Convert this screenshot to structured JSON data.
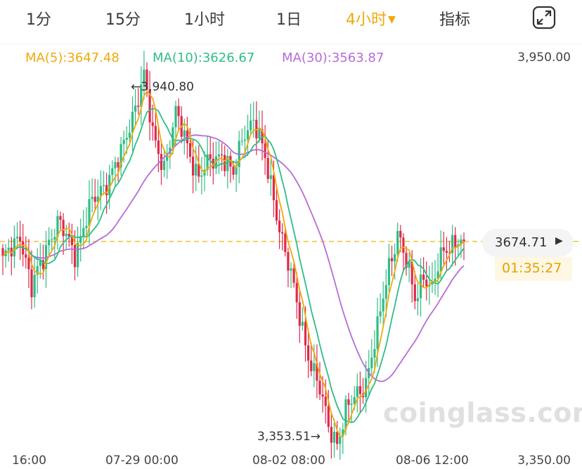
{
  "tabs": [
    {
      "label": "1分"
    },
    {
      "label": "15分"
    },
    {
      "label": "1小时"
    },
    {
      "label": "1日"
    },
    {
      "label": "4小时",
      "active": true
    },
    {
      "label": "指标"
    }
  ],
  "dropdown_caret": "▼",
  "icons": {
    "expand": "expand-corners-icon",
    "price_arrow": "triangle-right-icon"
  },
  "colors": {
    "up": "#2ebd85",
    "down": "#e0294a",
    "ma5": "#f0a90a",
    "ma10": "#2ebd85",
    "ma30": "#b86bd9",
    "last_price_line": "#f0c030",
    "accent": "#f0a90a"
  },
  "chart_data": {
    "type": "candlestick",
    "interval": "4小时",
    "price_axis": {
      "max_label": "3,950.00",
      "min_label": "3,350.00",
      "ylim": [
        3350,
        3950
      ]
    },
    "x_tick_labels": [
      "16:00",
      "07-29 00:00",
      "08-02 08:00",
      "08-06 12:00"
    ],
    "indicators": {
      "ma5": {
        "label": "MA(5):3647.48",
        "value": 3647.48
      },
      "ma10": {
        "label": "MA(10):3626.67",
        "value": 3626.67
      },
      "ma30": {
        "label": "MA(30):3563.87",
        "value": 3563.87
      }
    },
    "high_marker": {
      "label": "←3,940.80",
      "value": 3940.8
    },
    "low_marker": {
      "label": "3,353.51→",
      "value": 3353.51
    },
    "last_price": {
      "label": "3674.71",
      "value": 3674.71
    },
    "countdown": "01:35:27",
    "close_points": [
      {
        "t": 0,
        "close": 3640
      },
      {
        "t": 6,
        "close": 3690
      },
      {
        "t": 10,
        "close": 3600
      },
      {
        "t": 16,
        "close": 3680
      },
      {
        "t": 19,
        "close": 3700
      },
      {
        "t": 25,
        "close": 3660
      },
      {
        "t": 30,
        "close": 3720
      },
      {
        "t": 35,
        "close": 3760
      },
      {
        "t": 41,
        "close": 3800
      },
      {
        "t": 46,
        "close": 3880
      },
      {
        "t": 49,
        "close": 3920
      },
      {
        "t": 52,
        "close": 3830
      },
      {
        "t": 56,
        "close": 3790
      },
      {
        "t": 60,
        "close": 3860
      },
      {
        "t": 64,
        "close": 3820
      },
      {
        "t": 68,
        "close": 3770
      },
      {
        "t": 72,
        "close": 3790
      },
      {
        "t": 76,
        "close": 3810
      },
      {
        "t": 80,
        "close": 3770
      },
      {
        "t": 84,
        "close": 3840
      },
      {
        "t": 87,
        "close": 3860
      },
      {
        "t": 90,
        "close": 3810
      },
      {
        "t": 94,
        "close": 3740
      },
      {
        "t": 98,
        "close": 3660
      },
      {
        "t": 102,
        "close": 3580
      },
      {
        "t": 106,
        "close": 3510
      },
      {
        "t": 110,
        "close": 3450
      },
      {
        "t": 113,
        "close": 3400
      },
      {
        "t": 116,
        "close": 3380
      },
      {
        "t": 119,
        "close": 3420
      },
      {
        "t": 122,
        "close": 3440
      },
      {
        "t": 126,
        "close": 3470
      },
      {
        "t": 130,
        "close": 3540
      },
      {
        "t": 134,
        "close": 3640
      },
      {
        "t": 137,
        "close": 3690
      },
      {
        "t": 140,
        "close": 3640
      },
      {
        "t": 143,
        "close": 3590
      },
      {
        "t": 146,
        "close": 3630
      },
      {
        "t": 149,
        "close": 3600
      },
      {
        "t": 152,
        "close": 3650
      },
      {
        "t": 155,
        "close": 3675
      }
    ]
  },
  "watermark": "coinglass.com"
}
